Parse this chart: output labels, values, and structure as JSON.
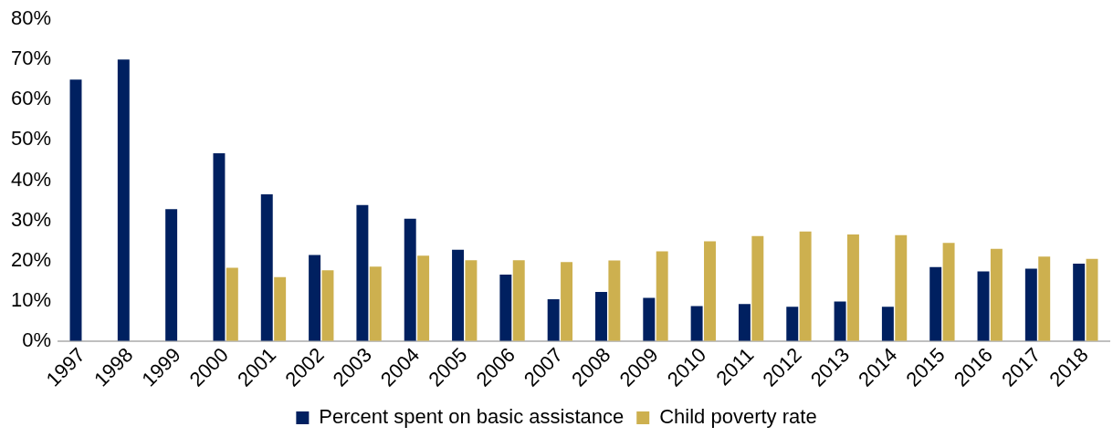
{
  "chart_data": {
    "type": "bar",
    "categories": [
      "1997",
      "1998",
      "1999",
      "2000",
      "2001",
      "2002",
      "2003",
      "2004",
      "2005",
      "2006",
      "2007",
      "2008",
      "2009",
      "2010",
      "2011",
      "2012",
      "2013",
      "2014",
      "2015",
      "2016",
      "2017",
      "2018"
    ],
    "series": [
      {
        "name": "Percent spent on basic assistance",
        "color": "#002060",
        "values": [
          65.0,
          70.0,
          32.8,
          46.7,
          36.5,
          21.4,
          33.8,
          30.4,
          22.7,
          16.5,
          10.4,
          12.2,
          10.7,
          8.7,
          9.2,
          8.5,
          9.8,
          8.5,
          18.4,
          17.3,
          18.0,
          19.2
        ]
      },
      {
        "name": "Child poverty rate",
        "color": "#cdb04f",
        "values": [
          null,
          null,
          null,
          18.2,
          15.9,
          17.6,
          18.5,
          21.2,
          20.1,
          20.1,
          19.6,
          20.0,
          22.3,
          24.8,
          26.1,
          27.2,
          26.5,
          26.3,
          24.4,
          22.9,
          21.0,
          20.4
        ]
      }
    ],
    "ylim": [
      0,
      80
    ],
    "yticks": [
      {
        "value": 0,
        "label": "0%"
      },
      {
        "value": 10,
        "label": "10%"
      },
      {
        "value": 20,
        "label": "20%"
      },
      {
        "value": 30,
        "label": "30%"
      },
      {
        "value": 40,
        "label": "40%"
      },
      {
        "value": 50,
        "label": "50%"
      },
      {
        "value": 60,
        "label": "60%"
      },
      {
        "value": 70,
        "label": "70%"
      },
      {
        "value": 80,
        "label": "80%"
      }
    ],
    "grid": false,
    "legend": "bottom"
  }
}
